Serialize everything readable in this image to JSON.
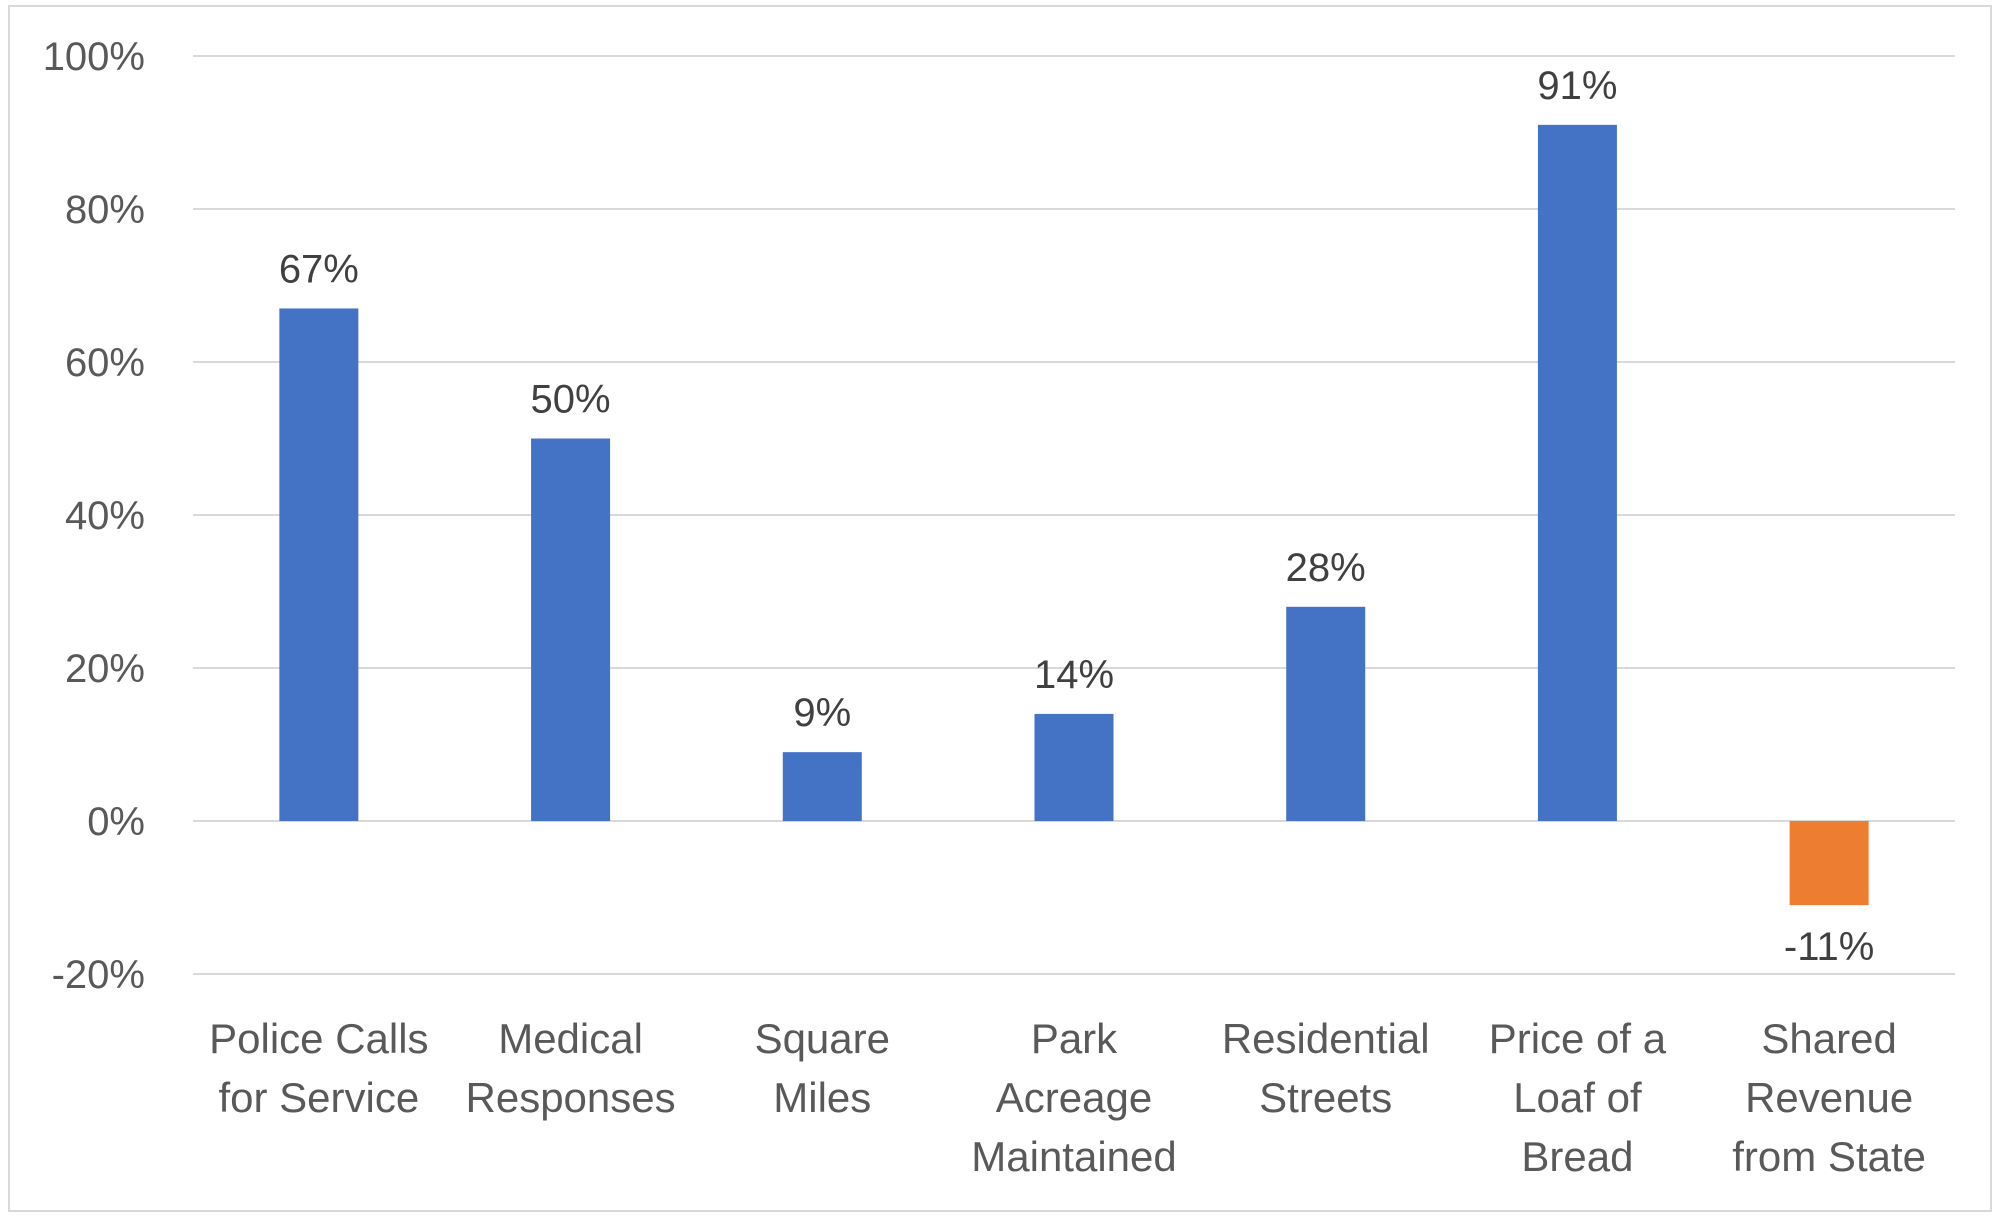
{
  "chart_data": {
    "type": "bar",
    "title": "",
    "xlabel": "",
    "ylabel": "",
    "categories": [
      "Police Calls for Service",
      "Medical Responses",
      "Square Miles",
      "Park Acreage Maintained",
      "Residential Streets",
      "Price of a Loaf of Bread",
      "Shared Revenue from State"
    ],
    "category_lines": [
      [
        "Police Calls",
        "for Service"
      ],
      [
        "Medical",
        "Responses"
      ],
      [
        "Square",
        "Miles"
      ],
      [
        "Park",
        "Acreage",
        "Maintained"
      ],
      [
        "Residential",
        "Streets"
      ],
      [
        "Price of a",
        "Loaf of",
        "Bread"
      ],
      [
        "Shared",
        "Revenue",
        "from State"
      ]
    ],
    "values": [
      67,
      50,
      9,
      14,
      28,
      91,
      -11
    ],
    "data_labels": [
      "67%",
      "50%",
      "9%",
      "14%",
      "28%",
      "91%",
      "-11%"
    ],
    "bar_colors": [
      "#4472C4",
      "#4472C4",
      "#4472C4",
      "#4472C4",
      "#4472C4",
      "#4472C4",
      "#ED7D31"
    ],
    "ylim": [
      -20,
      100
    ],
    "yticks": [
      100,
      80,
      60,
      40,
      20,
      0,
      -20
    ],
    "ytick_labels": [
      "100%",
      "80%",
      "60%",
      "40%",
      "20%",
      "0%",
      "-20%"
    ],
    "grid": true,
    "legend": "none",
    "colors": {
      "positive": "#4472C4",
      "negative": "#ED7D31",
      "gridline": "#d9d9d9",
      "axis_text": "#595959",
      "label_text": "#404040"
    }
  }
}
